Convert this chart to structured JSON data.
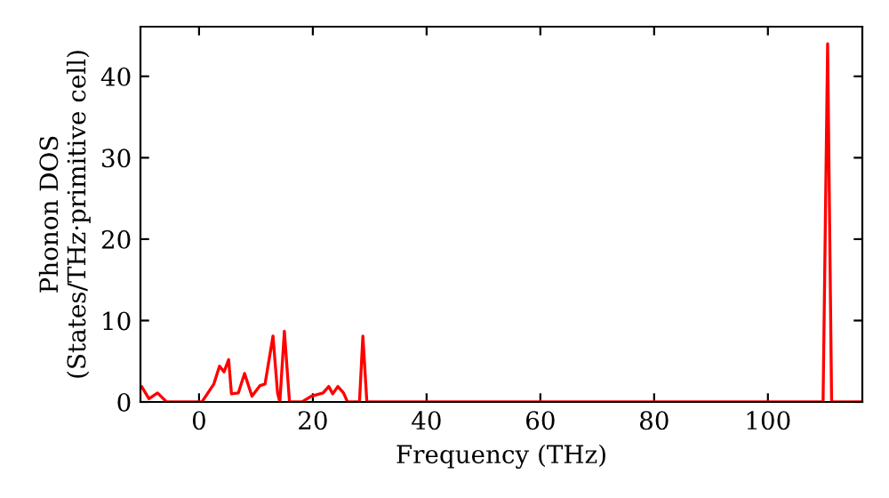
{
  "chart_data": {
    "type": "line",
    "xlabel": "Frequency (THz)",
    "ylabel": "Phonon DOS\n(States/THz·primitive cell)",
    "xlim": [
      -10.3,
      116.6
    ],
    "ylim": [
      0,
      46.1
    ],
    "xticks": [
      0,
      20,
      40,
      60,
      80,
      100
    ],
    "yticks": [
      0,
      10,
      20,
      30,
      40
    ],
    "grid": false,
    "line_style": "solid",
    "marker": "none",
    "series": [
      {
        "color": "#ff0000",
        "x": [
          -10.05,
          -8.8,
          -7.3,
          -5.7,
          0.5,
          2.6,
          3.6,
          4.4,
          5.2,
          5.7,
          6.9,
          8.0,
          9.3,
          10.7,
          11.6,
          13.0,
          13.8,
          14.2,
          15.0,
          15.9,
          18.1,
          19.7,
          21.8,
          22.8,
          23.5,
          24.4,
          25.4,
          26.1,
          28.2,
          28.8,
          29.5,
          109.7,
          110.5,
          111.2,
          116.6
        ],
        "values": [
          1.85,
          0.4,
          1.1,
          0,
          0,
          2.2,
          4.4,
          3.7,
          5.2,
          1.0,
          1.1,
          3.5,
          0.7,
          2.0,
          2.2,
          8.1,
          1.1,
          0,
          8.7,
          0,
          0,
          0.7,
          1.1,
          1.9,
          1.0,
          1.9,
          1.1,
          0,
          0,
          8.1,
          0,
          0,
          44,
          0,
          0
        ]
      }
    ]
  }
}
